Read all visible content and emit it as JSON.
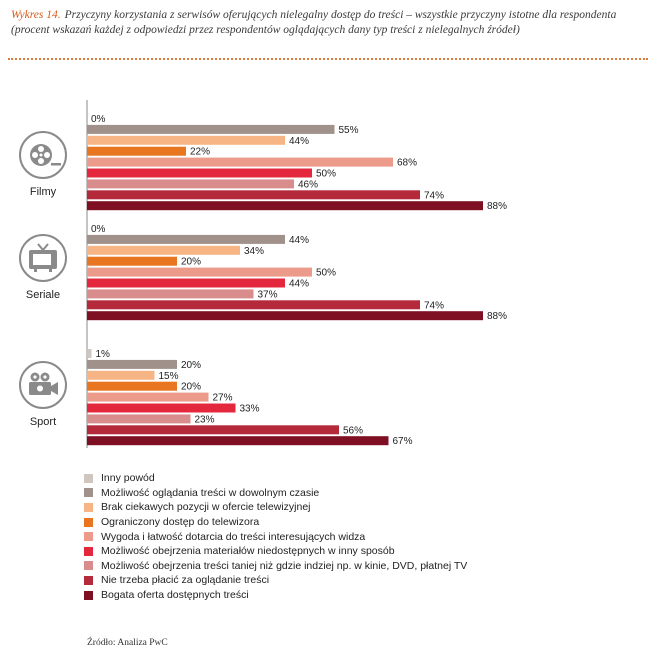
{
  "header": {
    "label": "Wykres 14.",
    "title": "Przyczyny korzystania z serwisów oferujących nielegalny dostęp do treści – wszystkie przyczyny istotne dla respondenta (procent wskazań każdej z odpowiedzi przez respondentów oglądających dany typ treści z nielegalnych źródeł)"
  },
  "chart_data": {
    "type": "bar",
    "orientation": "horizontal",
    "title": "Przyczyny korzystania z serwisów oferujących nielegalny dostęp do treści – wszystkie przyczyny istotne dla respondenta (procent wskazań każdej z odpowiedzi przez respondentów oglądających dany typ treści z nielegalnych źródeł)",
    "xlabel": "",
    "ylabel": "",
    "xlim": [
      0,
      100
    ],
    "unit": "%",
    "categories": [
      "Filmy",
      "Seriale",
      "Sport"
    ],
    "category_icons": [
      "film-reel-icon",
      "tv-icon",
      "camera-icon"
    ],
    "series": [
      {
        "name": "Inny powód",
        "color": "#cfc7bf",
        "values": [
          0,
          0,
          1
        ]
      },
      {
        "name": "Możliwość oglądania treści w dowolnym czasie",
        "color": "#a0928a",
        "values": [
          55,
          44,
          20
        ]
      },
      {
        "name": "Brak ciekawych pozycji w ofercie telewizyjnej",
        "color": "#f7b585",
        "values": [
          44,
          34,
          15
        ]
      },
      {
        "name": "Ograniczony dostęp do telewizora",
        "color": "#e8751f",
        "values": [
          22,
          20,
          20
        ]
      },
      {
        "name": "Wygoda i łatwość dotarcia do treści interesujących widza",
        "color": "#ec9a8a",
        "values": [
          68,
          50,
          27
        ]
      },
      {
        "name": "Możliwość obejrzenia materiałów niedostępnych w inny sposób",
        "color": "#e3283d",
        "values": [
          50,
          44,
          33
        ]
      },
      {
        "name": "Możliwość obejrzenia treści taniej niż gdzie indziej np. w kinie, DVD, płatnej TV",
        "color": "#d88c8c",
        "values": [
          46,
          37,
          23
        ]
      },
      {
        "name": "Nie trzeba płacić za oglądanie treści",
        "color": "#b52a3a",
        "values": [
          74,
          74,
          56
        ]
      },
      {
        "name": "Bogata oferta dostępnych treści",
        "color": "#7f1024",
        "values": [
          88,
          88,
          67
        ]
      }
    ],
    "legend_position": "bottom",
    "grid": false
  },
  "source": "Źródło: Analiza PwC"
}
